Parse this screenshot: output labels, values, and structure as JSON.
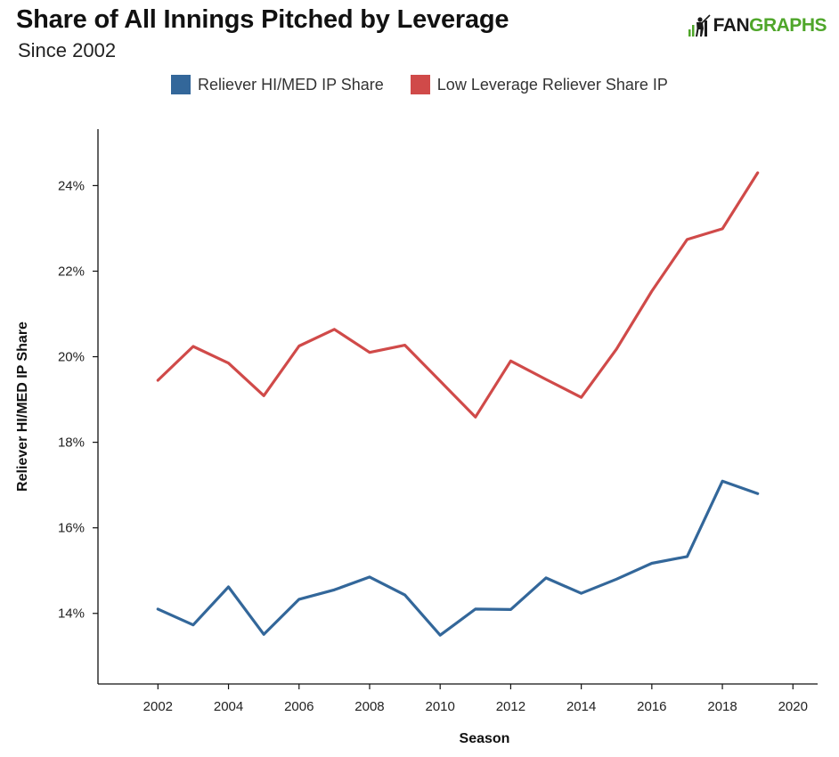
{
  "header": {
    "title": "Share of All Innings Pitched by Leverage",
    "subtitle": "Since 2002",
    "logo_fan": "FAN",
    "logo_graphs": "GRAPHS"
  },
  "colors": {
    "blue": "#33679a",
    "red": "#d04a49",
    "axis": "#111111"
  },
  "chart_data": {
    "type": "line",
    "xlabel": "Season",
    "ylabel": "Reliever HI/MED IP Share",
    "xlim": [
      2000.3,
      2020.7
    ],
    "ylim": [
      0.1235,
      0.2532
    ],
    "x_ticks": [
      2002,
      2004,
      2006,
      2008,
      2010,
      2012,
      2014,
      2016,
      2018,
      2020
    ],
    "y_ticks": [
      0.14,
      0.16,
      0.18,
      0.2,
      0.22,
      0.24
    ],
    "y_tick_labels": [
      "14%",
      "16%",
      "18%",
      "20%",
      "22%",
      "24%"
    ],
    "legend_position": "top",
    "grid": false,
    "x": [
      2002,
      2003,
      2004,
      2005,
      2006,
      2007,
      2008,
      2009,
      2010,
      2011,
      2012,
      2013,
      2014,
      2015,
      2016,
      2017,
      2018,
      2019
    ],
    "series": [
      {
        "name": "Reliever HI/MED IP Share",
        "color": "#33679a",
        "values": [
          0.141,
          0.1373,
          0.1462,
          0.1351,
          0.1433,
          0.1455,
          0.1485,
          0.1443,
          0.1349,
          0.141,
          0.1409,
          0.1483,
          0.1447,
          0.148,
          0.1517,
          0.1533,
          0.1709,
          0.168
        ]
      },
      {
        "name": "Low Leverage Reliever Share IP",
        "color": "#d04a49",
        "values": [
          0.1945,
          0.2024,
          0.1985,
          0.1909,
          0.2025,
          0.2064,
          0.201,
          0.2027,
          0.1943,
          0.1859,
          0.199,
          0.1947,
          0.1905,
          0.2018,
          0.2153,
          0.2274,
          0.2299,
          0.243
        ]
      }
    ]
  }
}
